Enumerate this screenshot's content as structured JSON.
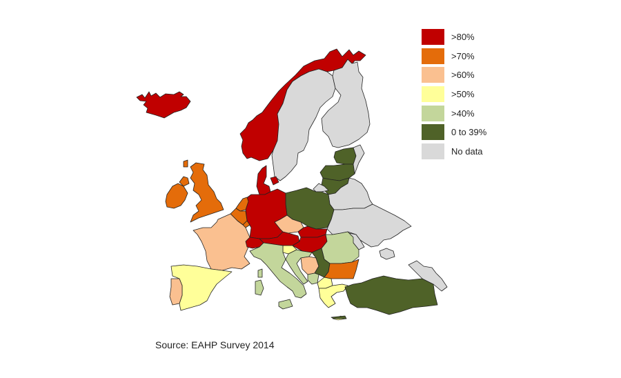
{
  "legend": {
    "items": [
      {
        "label": ">80%",
        "color": "#C00000"
      },
      {
        "label": ">70%",
        "color": "#E46C0A"
      },
      {
        "label": ">60%",
        "color": "#FAC090"
      },
      {
        "label": ">50%",
        "color": "#FFFF99"
      },
      {
        "label": ">40%",
        "color": "#C3D69B"
      },
      {
        "label": "0 to 39%",
        "color": "#4F6228"
      },
      {
        "label": "No data",
        "color": "#D9D9D9"
      }
    ]
  },
  "source": "Source: EAHP Survey 2014",
  "regions": [
    {
      "name": "iceland",
      "category": ">80%"
    },
    {
      "name": "norway",
      "category": ">80%"
    },
    {
      "name": "sweden",
      "category": "No data"
    },
    {
      "name": "finland",
      "category": "No data"
    },
    {
      "name": "russia-north",
      "category": "No data"
    },
    {
      "name": "estonia",
      "category": "0 to 39%"
    },
    {
      "name": "latvia",
      "category": "0 to 39%"
    },
    {
      "name": "lithuania",
      "category": "0 to 39%"
    },
    {
      "name": "kaliningrad",
      "category": "No data"
    },
    {
      "name": "belarus",
      "category": "No data"
    },
    {
      "name": "ukraine",
      "category": "No data"
    },
    {
      "name": "moldova",
      "category": "No data"
    },
    {
      "name": "poland",
      "category": "0 to 39%"
    },
    {
      "name": "denmark",
      "category": ">80%"
    },
    {
      "name": "germany",
      "category": ">80%"
    },
    {
      "name": "netherlands",
      "category": ">70%"
    },
    {
      "name": "belgium",
      "category": ">70%"
    },
    {
      "name": "luxembourg",
      "category": ">70%"
    },
    {
      "name": "ireland",
      "category": ">70%"
    },
    {
      "name": "united-kingdom",
      "category": ">70%"
    },
    {
      "name": "france",
      "category": ">60%"
    },
    {
      "name": "czech-republic",
      "category": ">60%"
    },
    {
      "name": "slovakia",
      "category": ">80%"
    },
    {
      "name": "austria",
      "category": ">80%"
    },
    {
      "name": "switzerland",
      "category": ">80%"
    },
    {
      "name": "liechtenstein",
      "category": ">80%"
    },
    {
      "name": "slovenia",
      "category": ">50%"
    },
    {
      "name": "hungary",
      "category": ">80%"
    },
    {
      "name": "romania",
      "category": ">40%"
    },
    {
      "name": "croatia",
      "category": ">40%"
    },
    {
      "name": "bosnia",
      "category": ">60%"
    },
    {
      "name": "serbia",
      "category": "0 to 39%"
    },
    {
      "name": "montenegro",
      "category": ">40%"
    },
    {
      "name": "macedonia",
      "category": ">50%"
    },
    {
      "name": "bulgaria",
      "category": ">70%"
    },
    {
      "name": "greece",
      "category": ">50%"
    },
    {
      "name": "italy",
      "category": ">40%"
    },
    {
      "name": "sardinia",
      "category": ">40%"
    },
    {
      "name": "sicily",
      "category": ">40%"
    },
    {
      "name": "spain",
      "category": ">50%"
    },
    {
      "name": "portugal",
      "category": ">60%"
    },
    {
      "name": "turkey",
      "category": "0 to 39%"
    },
    {
      "name": "cyprus",
      "category": "0 to 39%"
    },
    {
      "name": "caucasus",
      "category": "No data"
    }
  ]
}
